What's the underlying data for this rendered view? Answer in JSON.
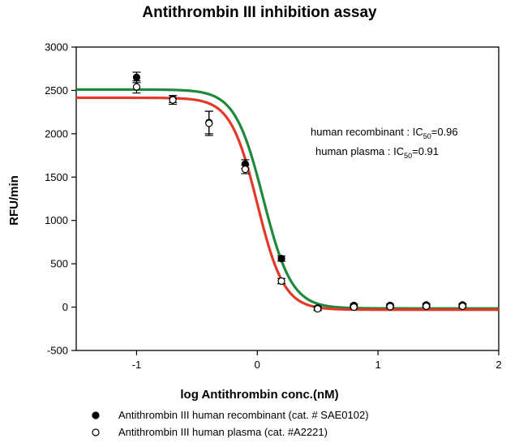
{
  "chart_data": {
    "type": "scatter",
    "title": "Antithrombin III inhibition assay",
    "xlabel": "log Antithrombin conc.(nM)",
    "ylabel": "RFU/min",
    "xlim": [
      -1.5,
      2
    ],
    "ylim": [
      -500,
      3000
    ],
    "x_ticks": [
      -1,
      0,
      1,
      2
    ],
    "y_ticks": [
      -500,
      0,
      500,
      1000,
      1500,
      2000,
      2500,
      3000
    ],
    "grid": false,
    "legend_position": "bottom",
    "series": [
      {
        "name": "Antithrombin III human recombinant (cat. # SAE0102)",
        "marker": "filled-circle",
        "color": "#000000",
        "points": [
          {
            "x": -1.0,
            "y": 2650,
            "err": 60
          },
          {
            "x": -0.7,
            "y": 2400,
            "err": 40
          },
          {
            "x": -0.4,
            "y": 2130,
            "err": 130
          },
          {
            "x": -0.1,
            "y": 1650,
            "err": 50
          },
          {
            "x": 0.2,
            "y": 560,
            "err": 30
          },
          {
            "x": 0.5,
            "y": -10,
            "err": 20
          },
          {
            "x": 0.8,
            "y": 20,
            "err": 15
          },
          {
            "x": 1.1,
            "y": 20,
            "err": 15
          },
          {
            "x": 1.4,
            "y": 25,
            "err": 15
          },
          {
            "x": 1.7,
            "y": 25,
            "err": 15
          }
        ]
      },
      {
        "name": "Antithrombin III human plasma (cat. #A2221)",
        "marker": "open-circle",
        "color": "#000000",
        "points": [
          {
            "x": -1.0,
            "y": 2540,
            "err": 70
          },
          {
            "x": -0.7,
            "y": 2390,
            "err": 50
          },
          {
            "x": -0.4,
            "y": 2120,
            "err": 140
          },
          {
            "x": -0.1,
            "y": 1590,
            "err": 50
          },
          {
            "x": 0.2,
            "y": 300,
            "err": 30
          },
          {
            "x": 0.5,
            "y": -20,
            "err": 20
          },
          {
            "x": 0.8,
            "y": 0,
            "err": 15
          },
          {
            "x": 1.1,
            "y": 5,
            "err": 15
          },
          {
            "x": 1.4,
            "y": 10,
            "err": 15
          },
          {
            "x": 1.7,
            "y": 10,
            "err": 15
          }
        ]
      }
    ],
    "fits": [
      {
        "series_ref": "Antithrombin III human recombinant (cat. # SAE0102)",
        "color": "#1e8a3c",
        "top": 2510,
        "bottom": -15,
        "x50": 0.05,
        "slope": 8.5
      },
      {
        "series_ref": "Antithrombin III human plasma (cat. #A2221)",
        "color": "#e23a28",
        "top": 2415,
        "bottom": -30,
        "x50": 0.0,
        "slope": 9.0
      }
    ],
    "annotations": [
      {
        "prefix": "human recombinant : IC",
        "sub": "50",
        "suffix": "=0.96"
      },
      {
        "prefix": "human plasma : IC",
        "sub": "50",
        "suffix": "=0.91"
      }
    ]
  }
}
